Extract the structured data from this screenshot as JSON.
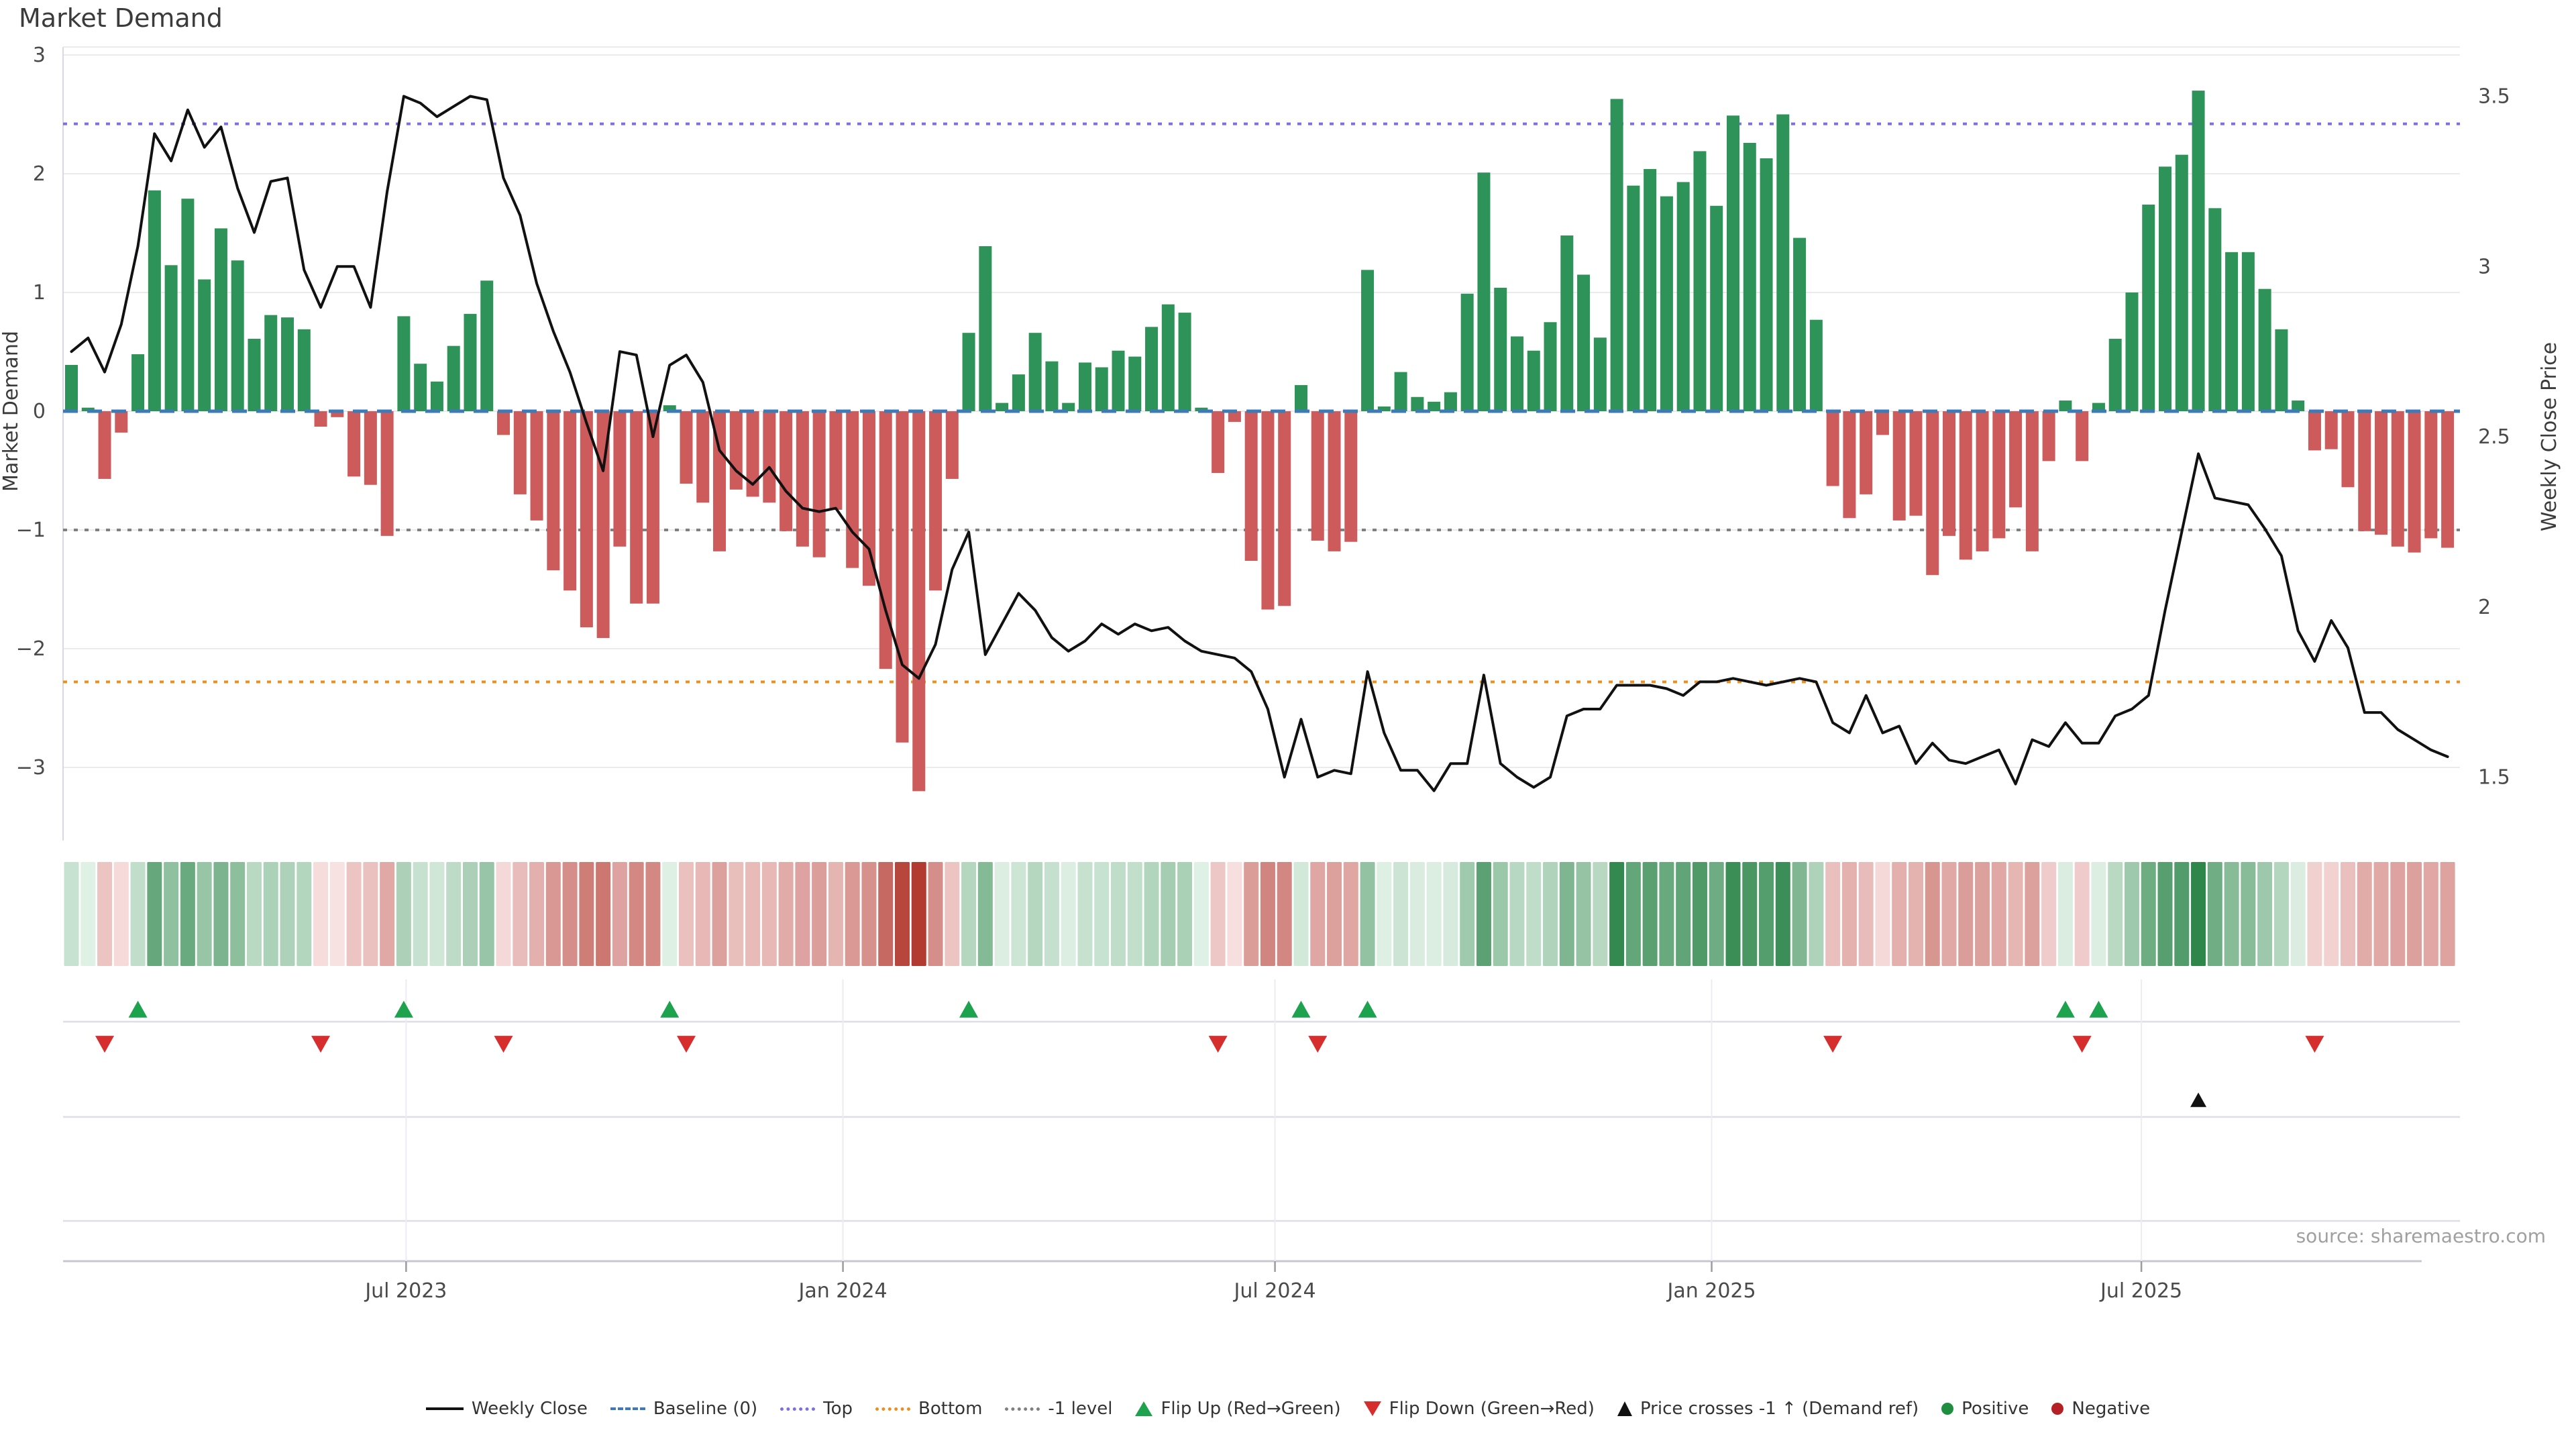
{
  "title": "Market Demand",
  "source_note": "source: sharemaestro.com",
  "colors": {
    "bar_positive": "#2E9358",
    "bar_negative": "#CD5B5B",
    "price_line": "#111111",
    "baseline": "#3E7BB6",
    "top_line": "#7B70DE",
    "bottom_line": "#E89020",
    "minus1_line": "#808080",
    "grid": "#EAEAF0",
    "spine": "#D9D9E3",
    "flip_up": "#1DA24E",
    "flip_down": "#D62D2D",
    "price_cross": "#111111",
    "tick_text": "#4A4A4A",
    "source_text": "#A0A0A0"
  },
  "legend": [
    {
      "symbol": "line",
      "label": "Weekly Close"
    },
    {
      "symbol": "dash-blue",
      "label": "Baseline (0)"
    },
    {
      "symbol": "dot-purple",
      "label": "Top"
    },
    {
      "symbol": "dot-orange",
      "label": "Bottom"
    },
    {
      "symbol": "dot-gray",
      "label": "-1 level"
    },
    {
      "symbol": "tri-up-green",
      "label": "Flip Up (Red→Green)"
    },
    {
      "symbol": "tri-down-red",
      "label": "Flip Down (Green→Red)"
    },
    {
      "symbol": "tri-up-black",
      "label": "Price crosses -1 ↑ (Demand ref)"
    },
    {
      "symbol": "circle-green",
      "label": "Positive"
    },
    {
      "symbol": "circle-red",
      "label": "Negative"
    }
  ],
  "chart_data": {
    "type": "bar+line",
    "title": "Market Demand",
    "ylabel_left": "Market Demand",
    "ylabel_right": "Weekly Close Price",
    "left_ticks": [
      {
        "label": "3",
        "value": 3
      },
      {
        "label": "2",
        "value": 2
      },
      {
        "label": "1",
        "value": 1
      },
      {
        "label": "0",
        "value": 0
      },
      {
        "label": "−1",
        "value": -1
      },
      {
        "label": "−2",
        "value": -2
      },
      {
        "label": "−3",
        "value": -3
      }
    ],
    "right_ticks": [
      {
        "label": "3.5",
        "value": 3.5
      },
      {
        "label": "3",
        "value": 3.0
      },
      {
        "label": "2.5",
        "value": 2.5
      },
      {
        "label": "2",
        "value": 2.0
      },
      {
        "label": "1.5",
        "value": 1.5
      }
    ],
    "x_ticks": [
      {
        "label": "Jul 2023",
        "week": 20.14
      },
      {
        "label": "Jan 2024",
        "week": 46.43
      },
      {
        "label": "Jul 2024",
        "week": 72.43
      },
      {
        "label": "Jan 2025",
        "week": 98.71
      },
      {
        "label": "Jul 2025",
        "week": 124.57
      }
    ],
    "reference_lines": {
      "baseline": 0,
      "top": 2.42,
      "bottom": -2.28,
      "minus1": -1
    },
    "left_axis_range": [
      -3.62,
      3.07
    ],
    "right_axis_range": [
      1.31,
      3.57
    ],
    "grid": "horizontal",
    "legend_position": "bottom",
    "bars": {
      "name": "Market Demand (weekly)",
      "values": [
        0.39,
        0.03,
        -0.57,
        -0.18,
        0.48,
        1.86,
        1.23,
        1.79,
        1.11,
        1.54,
        1.27,
        0.61,
        0.81,
        0.79,
        0.69,
        -0.13,
        -0.05,
        -0.55,
        -0.62,
        -1.05,
        0.8,
        0.4,
        0.25,
        0.55,
        0.82,
        1.1,
        -0.2,
        -0.7,
        -0.92,
        -1.34,
        -1.51,
        -1.82,
        -1.91,
        -1.14,
        -1.62,
        -1.62,
        0.05,
        -0.61,
        -0.77,
        -1.18,
        -0.66,
        -0.72,
        -0.77,
        -1.01,
        -1.14,
        -1.23,
        -0.83,
        -1.32,
        -1.47,
        -2.17,
        -2.79,
        -3.2,
        -1.51,
        -0.57,
        0.66,
        1.39,
        0.07,
        0.31,
        0.66,
        0.42,
        0.07,
        0.41,
        0.37,
        0.51,
        0.46,
        0.71,
        0.9,
        0.83,
        0.03,
        -0.52,
        -0.09,
        -1.26,
        -1.67,
        -1.64,
        0.22,
        -1.09,
        -1.18,
        -1.1,
        1.19,
        0.04,
        0.33,
        0.12,
        0.08,
        0.16,
        0.99,
        2.01,
        1.04,
        0.63,
        0.51,
        0.75,
        1.48,
        1.15,
        0.62,
        2.63,
        1.9,
        2.04,
        1.81,
        1.93,
        2.19,
        1.73,
        2.49,
        2.26,
        2.13,
        2.5,
        1.46,
        0.77,
        -0.63,
        -0.9,
        -0.7,
        -0.2,
        -0.92,
        -0.88,
        -1.38,
        -1.05,
        -1.25,
        -1.18,
        -1.07,
        -0.81,
        -1.18,
        -0.42,
        0.09,
        -0.42,
        0.07,
        0.61,
        1.0,
        1.74,
        2.06,
        2.16,
        2.7,
        1.71,
        1.34,
        1.34,
        1.03,
        0.69,
        0.09,
        -0.33,
        -0.32,
        -0.64,
        -1.01,
        -1.04,
        -1.14,
        -1.19,
        -1.07,
        -1.15
      ]
    },
    "line": {
      "name": "Weekly Close",
      "values": [
        2.75,
        2.79,
        2.69,
        2.83,
        3.06,
        3.39,
        3.31,
        3.46,
        3.35,
        3.41,
        3.23,
        3.1,
        3.25,
        3.26,
        2.99,
        2.88,
        3.0,
        3.0,
        2.88,
        3.22,
        3.5,
        3.48,
        3.44,
        3.47,
        3.5,
        3.49,
        3.26,
        3.15,
        2.95,
        2.81,
        2.69,
        2.54,
        2.4,
        2.75,
        2.74,
        2.5,
        2.71,
        2.74,
        2.66,
        2.46,
        2.4,
        2.36,
        2.41,
        2.34,
        2.29,
        2.28,
        2.29,
        2.22,
        2.17,
        1.99,
        1.83,
        1.79,
        1.89,
        2.11,
        2.22,
        1.86,
        1.95,
        2.04,
        1.99,
        1.91,
        1.87,
        1.9,
        1.95,
        1.92,
        1.95,
        1.93,
        1.94,
        1.9,
        1.87,
        1.86,
        1.85,
        1.81,
        1.7,
        1.5,
        1.67,
        1.5,
        1.52,
        1.51,
        1.81,
        1.63,
        1.52,
        1.52,
        1.46,
        1.54,
        1.54,
        1.8,
        1.54,
        1.5,
        1.47,
        1.5,
        1.68,
        1.7,
        1.7,
        1.77,
        1.77,
        1.77,
        1.76,
        1.74,
        1.78,
        1.78,
        1.79,
        1.78,
        1.77,
        1.78,
        1.79,
        1.78,
        1.66,
        1.63,
        1.74,
        1.63,
        1.65,
        1.54,
        1.6,
        1.55,
        1.54,
        1.56,
        1.58,
        1.48,
        1.61,
        1.59,
        1.66,
        1.6,
        1.6,
        1.68,
        1.7,
        1.74,
        1.99,
        2.22,
        2.45,
        2.32,
        2.31,
        2.3,
        2.23,
        2.15,
        1.93,
        1.84,
        1.96,
        1.88,
        1.69,
        1.69,
        1.64,
        1.61,
        1.58,
        1.56
      ]
    },
    "heatmap": {
      "note": "weekly strip shaded by Market Demand sign and magnitude"
    },
    "markers": {
      "flip_up_weeks": [
        4,
        20,
        36,
        54,
        74,
        78,
        120,
        122
      ],
      "flip_down_weeks": [
        2,
        15,
        26,
        37,
        69,
        75,
        106,
        121,
        135
      ],
      "price_cross_weeks": [
        128
      ]
    }
  }
}
